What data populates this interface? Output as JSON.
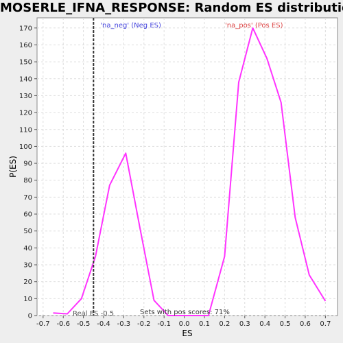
{
  "chart_data": {
    "type": "line",
    "title": "MOSERLE_IFNA_RESPONSE: Random ES distribution",
    "xlabel": "ES",
    "ylabel": "P(ES)",
    "xlim": [
      -0.73,
      0.76
    ],
    "ylim": [
      0,
      176
    ],
    "grid": true,
    "x_ticks": [
      -0.7,
      -0.6,
      -0.5,
      -0.4,
      -0.3,
      -0.2,
      -0.1,
      0.0,
      0.1,
      0.2,
      0.3,
      0.4,
      0.5,
      0.6,
      0.7
    ],
    "x_tick_labels": [
      "-0.7",
      "-0.6",
      "-0.5",
      "-0.4",
      "-0.3",
      "-0.2",
      "-0.1",
      "0.0",
      "0.1",
      "0.2",
      "0.3",
      "0.4",
      "0.5",
      "0.6",
      "0.7"
    ],
    "y_ticks": [
      0,
      10,
      20,
      30,
      40,
      50,
      60,
      70,
      80,
      90,
      100,
      110,
      120,
      130,
      140,
      150,
      160,
      170
    ],
    "series": [
      {
        "color": "#ff33ff",
        "x": [
          -0.65,
          -0.58,
          -0.51,
          -0.44,
          -0.37,
          -0.29,
          -0.22,
          -0.15,
          -0.08,
          0.12,
          0.2,
          0.27,
          0.34,
          0.41,
          0.48,
          0.55,
          0.62,
          0.7
        ],
        "y": [
          1.5,
          1,
          10,
          35,
          77,
          96,
          52,
          9,
          0,
          0,
          35,
          138,
          170,
          152,
          126,
          58,
          24,
          8.5
        ]
      }
    ],
    "annotations": {
      "neg_label": "'na_neg' (Neg ES)",
      "neg_color": "#4444dd",
      "pos_label": "'na_pos' (Pos ES)",
      "pos_color": "#dd4444",
      "real_es_label": "Real ES -0.5",
      "real_es_x": -0.45,
      "pos_scores_label": "Sets with pos scores: 71%"
    }
  }
}
